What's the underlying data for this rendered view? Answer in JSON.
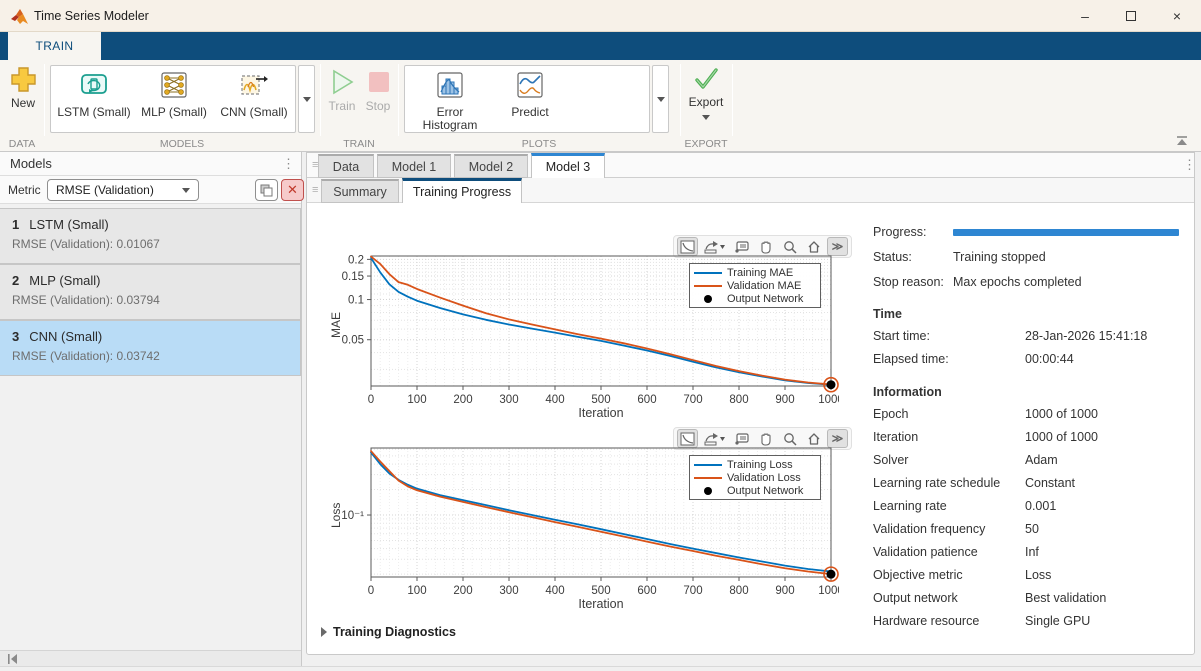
{
  "window": {
    "title": "Time Series Modeler"
  },
  "ribbon": {
    "tab_label": "TRAIN",
    "data_group": {
      "section_label": "DATA",
      "new_label": "New"
    },
    "models_group": {
      "section_label": "MODELS",
      "items": [
        {
          "label": "LSTM (Small)"
        },
        {
          "label": "MLP (Small)"
        },
        {
          "label": "CNN (Small)"
        }
      ]
    },
    "train_group": {
      "section_label": "TRAIN",
      "train_label": "Train",
      "stop_label": "Stop"
    },
    "plots_group": {
      "section_label": "PLOTS",
      "items": [
        {
          "label_line1": "Error",
          "label_line2": "Histogram"
        },
        {
          "label_line1": "Predict",
          "label_line2": ""
        }
      ]
    },
    "export_group": {
      "section_label": "EXPORT",
      "export_label": "Export"
    }
  },
  "models_panel": {
    "title": "Models",
    "metric_label": "Metric",
    "metric_value": "RMSE (Validation)",
    "items": [
      {
        "index": "1",
        "name": "LSTM (Small)",
        "metric": "RMSE (Validation): 0.01067",
        "selected": false
      },
      {
        "index": "2",
        "name": "MLP (Small)",
        "metric": "RMSE (Validation): 0.03794",
        "selected": false
      },
      {
        "index": "3",
        "name": "CNN (Small)",
        "metric": "RMSE (Validation): 0.03742",
        "selected": true
      }
    ]
  },
  "doc_tabs": [
    {
      "label": "Data",
      "active": false
    },
    {
      "label": "Model 1",
      "active": false
    },
    {
      "label": "Model 2",
      "active": false
    },
    {
      "label": "Model 3",
      "active": true
    }
  ],
  "sub_tabs": [
    {
      "label": "Summary",
      "active": false
    },
    {
      "label": "Training Progress",
      "active": true
    }
  ],
  "chart_toolbar_icons": [
    "save-plot",
    "export",
    "data-tips",
    "pan",
    "zoom",
    "restore-view",
    "more-tools"
  ],
  "training_panel": {
    "progress_label": "Progress:",
    "progress_percent": 100,
    "progress_color": "#2e86d2",
    "status_label": "Status:",
    "status_value": "Training stopped",
    "stop_reason_label": "Stop reason:",
    "stop_reason_value": "Max epochs completed",
    "time": {
      "header": "Time",
      "rows": [
        {
          "label": "Start time:",
          "value": "28-Jan-2026 15:41:18"
        },
        {
          "label": "Elapsed time:",
          "value": "00:00:44"
        }
      ]
    },
    "information": {
      "header": "Information",
      "rows": [
        {
          "label": "Epoch",
          "value": "1000 of 1000"
        },
        {
          "label": "Iteration",
          "value": "1000 of 1000"
        },
        {
          "label": "Solver",
          "value": "Adam"
        },
        {
          "label": "Learning rate schedule",
          "value": "Constant"
        },
        {
          "label": "Learning rate",
          "value": "0.001"
        },
        {
          "label": "Validation frequency",
          "value": "50"
        },
        {
          "label": "Validation patience",
          "value": "Inf"
        },
        {
          "label": "Objective metric",
          "value": "Loss"
        },
        {
          "label": "Output network",
          "value": "Best validation"
        },
        {
          "label": "Hardware resource",
          "value": "Single GPU"
        }
      ]
    }
  },
  "diagnostics_label": "Training Diagnostics",
  "chart_data": [
    {
      "type": "line",
      "title": "",
      "xlabel": "Iteration",
      "ylabel": "MAE",
      "xlim": [
        0,
        1000
      ],
      "xticks": [
        0,
        100,
        200,
        300,
        400,
        500,
        600,
        700,
        800,
        900,
        1000
      ],
      "yscale": "log",
      "ylim": [
        0.0225,
        0.212
      ],
      "yticks": [
        {
          "value": 0.05,
          "label": "0.05"
        },
        {
          "value": 0.1,
          "label": "0.1"
        },
        {
          "value": 0.15,
          "label": "0.15"
        },
        {
          "value": 0.2,
          "label": "0.2"
        }
      ],
      "yminor": [
        0.03,
        0.04,
        0.06,
        0.07,
        0.08,
        0.09,
        0.11,
        0.12,
        0.13,
        0.14,
        0.16,
        0.17,
        0.18,
        0.19
      ],
      "grid": true,
      "legend_position": "top-right",
      "x": [
        0,
        20,
        40,
        60,
        80,
        100,
        150,
        200,
        250,
        300,
        350,
        400,
        450,
        500,
        550,
        600,
        650,
        700,
        750,
        800,
        850,
        900,
        950,
        1000
      ],
      "series": [
        {
          "name": "Training MAE",
          "color": "#0072bd",
          "y": [
            0.205,
            0.16,
            0.13,
            0.114,
            0.105,
            0.098,
            0.0865,
            0.0775,
            0.0705,
            0.065,
            0.0605,
            0.0565,
            0.0525,
            0.049,
            0.0452,
            0.0415,
            0.0378,
            0.0342,
            0.031,
            0.0285,
            0.0265,
            0.0248,
            0.0237,
            0.023
          ]
        },
        {
          "name": "Validation MAE",
          "color": "#d95319",
          "y": [
            0.21,
            0.185,
            0.155,
            0.135,
            0.129,
            0.12,
            0.1035,
            0.09,
            0.079,
            0.071,
            0.065,
            0.0598,
            0.055,
            0.051,
            0.047,
            0.043,
            0.039,
            0.0352,
            0.0318,
            0.0291,
            0.0269,
            0.0251,
            0.0239,
            0.0231
          ]
        },
        {
          "name": "Output Network",
          "color": "#000000",
          "marker": true,
          "marker_x": 1000,
          "marker_y": 0.023,
          "ring_color": "#d95319"
        }
      ]
    },
    {
      "type": "line",
      "title": "",
      "xlabel": "Iteration",
      "ylabel": "Loss",
      "xlim": [
        0,
        1000
      ],
      "xticks": [
        0,
        100,
        200,
        300,
        400,
        500,
        600,
        700,
        800,
        900,
        1000
      ],
      "yscale": "log",
      "ylim": [
        0.0185,
        0.62
      ],
      "yticks": [
        {
          "value": 0.1,
          "label": "10⁻¹"
        }
      ],
      "yminor": [
        0.02,
        0.03,
        0.04,
        0.05,
        0.06,
        0.07,
        0.08,
        0.09,
        0.2,
        0.3,
        0.4,
        0.5,
        0.6
      ],
      "grid": true,
      "legend_position": "top-right",
      "x": [
        0,
        20,
        40,
        60,
        80,
        100,
        150,
        200,
        250,
        300,
        350,
        400,
        450,
        500,
        550,
        600,
        650,
        700,
        750,
        800,
        850,
        900,
        950,
        1000
      ],
      "series": [
        {
          "name": "Training Loss",
          "color": "#0072bd",
          "y": [
            0.55,
            0.4,
            0.31,
            0.26,
            0.228,
            0.205,
            0.172,
            0.15,
            0.131,
            0.114,
            0.1,
            0.088,
            0.0775,
            0.068,
            0.0595,
            0.052,
            0.0455,
            0.04,
            0.0355,
            0.0315,
            0.0282,
            0.0252,
            0.023,
            0.0215
          ]
        },
        {
          "name": "Validation Loss",
          "color": "#d95319",
          "y": [
            0.57,
            0.43,
            0.33,
            0.255,
            0.218,
            0.196,
            0.165,
            0.143,
            0.124,
            0.108,
            0.0945,
            0.0825,
            0.0725,
            0.0635,
            0.0555,
            0.0485,
            0.0425,
            0.0375,
            0.033,
            0.0295,
            0.0262,
            0.0235,
            0.0215,
            0.02
          ]
        },
        {
          "name": "Output Network",
          "color": "#000000",
          "marker": true,
          "marker_x": 1000,
          "marker_y": 0.02,
          "ring_color": "#d95319"
        }
      ]
    }
  ]
}
